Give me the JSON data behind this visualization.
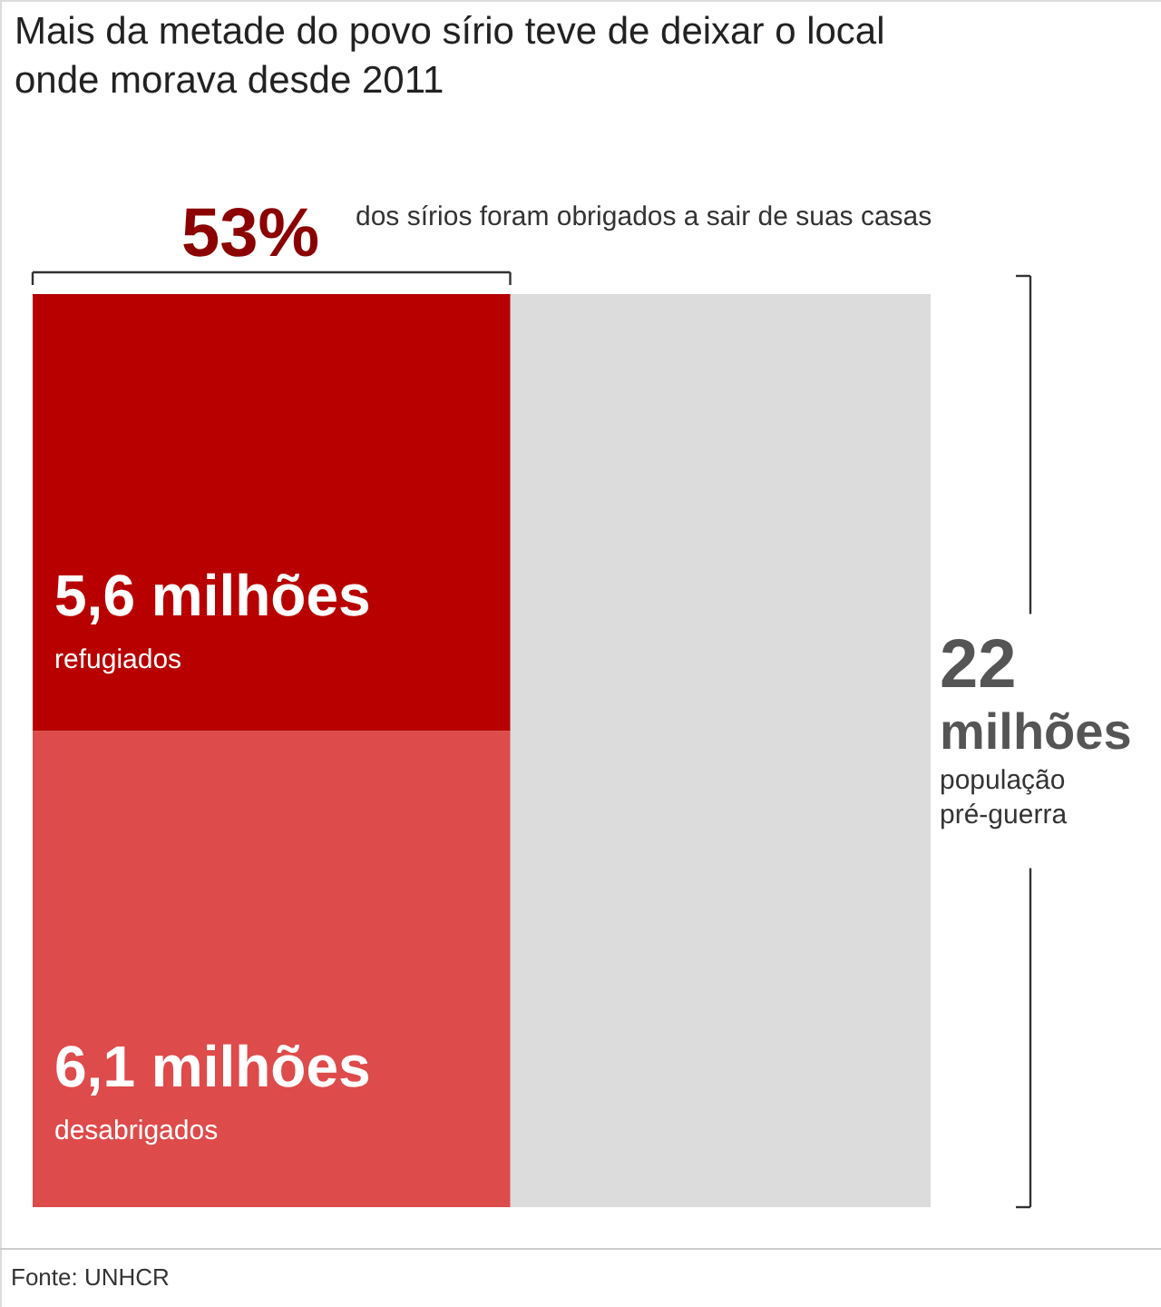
{
  "chart_data": {
    "type": "other",
    "title": "Mais da metade do povo sírio teve de deixar o local onde morava desde 2011",
    "categories": [
      "refugiados",
      "desabrigados",
      "população pré-guerra"
    ],
    "values": [
      5.6,
      6.1,
      22
    ],
    "value_labels": [
      "5,6 milhões",
      "6,1 milhões",
      "22 milhões"
    ],
    "colors": [
      "#b80000",
      "#de4b4b",
      "#dcdcdc"
    ],
    "annotations": [
      "53%",
      "dos sírios foram obrigados a sair de suas casas",
      "Fonte: UNHCR"
    ]
  }
}
